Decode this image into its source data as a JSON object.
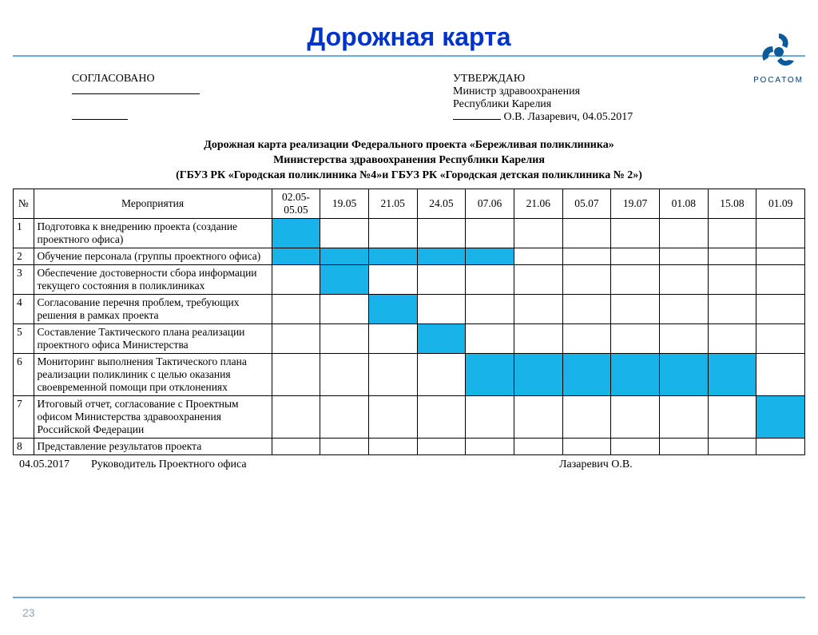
{
  "title": "Дорожная карта",
  "logo_text": "РОСАТОМ",
  "sig": {
    "left_caption": "СОГЛАСОВАНО",
    "right_caption": "УТВЕРЖДАЮ",
    "right_line1": "Министр здравоохранения",
    "right_line2": "Республики Карелия",
    "right_name": "О.В. Лазаревич, 04.05.2017"
  },
  "doc_title_1": "Дорожная карта реализации Федерального проекта «Бережливая поликлиника»",
  "doc_title_2": "Министерства здравоохранения Республики Карелия",
  "doc_title_3": "(ГБУЗ РК «Городская поликлиника №4»и ГБУЗ РК «Городская детская поликлиника № 2»)",
  "columns": {
    "num": "№",
    "activity": "Мероприятия",
    "dates": [
      "02.05-05.05",
      "19.05",
      "21.05",
      "24.05",
      "07.06",
      "21.06",
      "05.07",
      "19.07",
      "01.08",
      "15.08",
      "01.09"
    ]
  },
  "fill_color": "#18b3e8",
  "rows": [
    {
      "n": "1",
      "text": "Подготовка к внедрению проекта (создание проектного офиса)",
      "fill": [
        0
      ]
    },
    {
      "n": "2",
      "text": "Обучение персонала (группы проектного офиса)",
      "fill": [
        0,
        1,
        2,
        3,
        4
      ]
    },
    {
      "n": "3",
      "text": "Обеспечение достоверности сбора информации  текущего состояния в поликлиниках",
      "fill": [
        1
      ]
    },
    {
      "n": "4",
      "text": "Согласование  перечня проблем, требующих решения в рамках проекта",
      "fill": [
        2
      ]
    },
    {
      "n": "5",
      "text": "Составление Тактического плана реализации проектного офиса Министерства",
      "fill": [
        3
      ]
    },
    {
      "n": "6",
      "text": "Мониторинг выполнения Тактического плана реализации поликлиник с целью оказания своевременной помощи при отклонениях",
      "fill": [
        4,
        5,
        6,
        7,
        8,
        9
      ]
    },
    {
      "n": "7",
      "text": "Итоговый отчет, согласование с Проектным офисом Министерства здравоохранения Российской Федерации",
      "fill": [
        10
      ]
    },
    {
      "n": "8",
      "text": "Представление результатов проекта",
      "fill": []
    }
  ],
  "footer": {
    "date": "04.05.2017",
    "role": "Руководитель Проектного офиса",
    "name": "Лазаревич О.В."
  },
  "page_number": "23"
}
